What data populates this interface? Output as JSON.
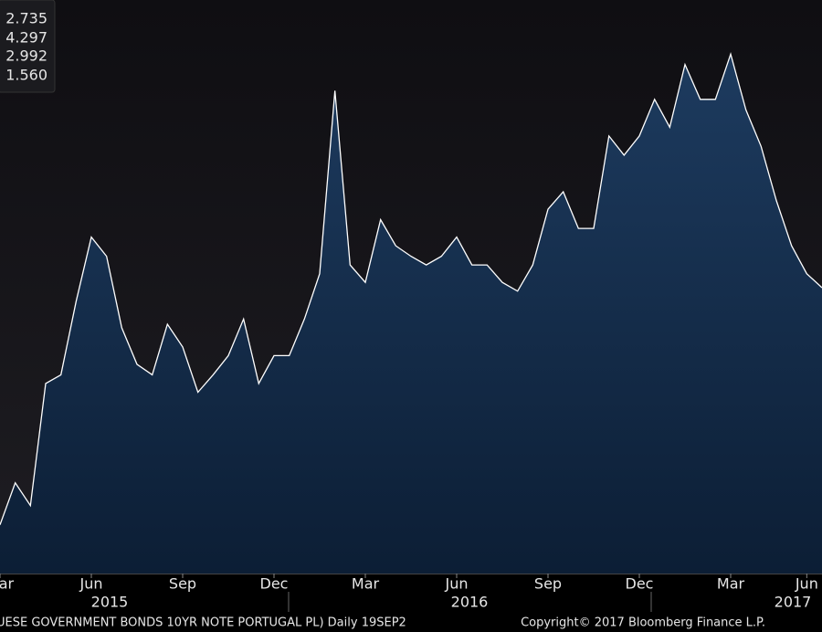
{
  "chart_data": {
    "type": "area",
    "legend_values": [
      2.735,
      4.297,
      2.992,
      {
        "value": 1.56,
        "label": "1.560"
      }
    ],
    "categories": [
      "Mar",
      null,
      null,
      null,
      null,
      null,
      "Jun",
      null,
      null,
      null,
      null,
      null,
      "Sep",
      null,
      null,
      null,
      null,
      null,
      "Dec",
      null,
      null,
      null,
      null,
      null,
      "Mar",
      null,
      null,
      null,
      null,
      null,
      "Jun",
      null,
      null,
      null,
      null,
      null,
      "Sep",
      null,
      null,
      null,
      null,
      null,
      "Dec",
      null,
      null,
      null,
      null,
      null,
      "Mar",
      null,
      null,
      null,
      null,
      "Jun",
      null
    ],
    "years": [
      "2015",
      "2016",
      "2017"
    ],
    "values": [
      1.56,
      1.8,
      1.67,
      2.37,
      2.42,
      2.84,
      3.21,
      3.1,
      2.69,
      2.48,
      2.42,
      2.71,
      2.58,
      2.32,
      2.42,
      2.53,
      2.74,
      2.37,
      2.53,
      2.53,
      2.74,
      3.0,
      4.05,
      3.05,
      2.95,
      3.31,
      3.16,
      3.1,
      3.05,
      3.1,
      3.21,
      3.05,
      3.05,
      2.95,
      2.9,
      3.05,
      3.37,
      3.47,
      3.26,
      3.26,
      3.79,
      3.68,
      3.79,
      4.0,
      3.84,
      4.2,
      4.0,
      4.0,
      4.26,
      3.94,
      3.73,
      3.42,
      3.16,
      3.0,
      2.92
    ],
    "color": "#ffffff",
    "ylim": [
      1.28,
      4.57
    ],
    "source": "UESE GOVERNMENT BONDS 10YR NOTE PORTUGAL PL)  Daily 19SEP2",
    "copyright": "Copyright© 2017 Bloomberg Finance L.P."
  }
}
